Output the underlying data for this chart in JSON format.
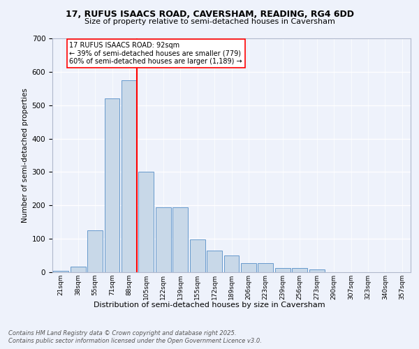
{
  "title1": "17, RUFUS ISAACS ROAD, CAVERSHAM, READING, RG4 6DD",
  "title2": "Size of property relative to semi-detached houses in Caversham",
  "xlabel": "Distribution of semi-detached houses by size in Caversham",
  "ylabel": "Number of semi-detached properties",
  "categories": [
    "21sqm",
    "38sqm",
    "55sqm",
    "71sqm",
    "88sqm",
    "105sqm",
    "122sqm",
    "139sqm",
    "155sqm",
    "172sqm",
    "189sqm",
    "206sqm",
    "223sqm",
    "239sqm",
    "256sqm",
    "273sqm",
    "290sqm",
    "307sqm",
    "323sqm",
    "340sqm",
    "357sqm"
  ],
  "values": [
    5,
    17,
    125,
    520,
    575,
    300,
    195,
    195,
    98,
    65,
    50,
    28,
    28,
    12,
    12,
    8,
    0,
    0,
    0,
    0,
    0
  ],
  "bar_color": "#c8d8e8",
  "bar_edge_color": "#6699cc",
  "annotation_text": "17 RUFUS ISAACS ROAD: 92sqm\n← 39% of semi-detached houses are smaller (779)\n60% of semi-detached houses are larger (1,189) →",
  "footer1": "Contains HM Land Registry data © Crown copyright and database right 2025.",
  "footer2": "Contains public sector information licensed under the Open Government Licence v3.0.",
  "ylim": [
    0,
    700
  ],
  "yticks": [
    0,
    100,
    200,
    300,
    400,
    500,
    600,
    700
  ],
  "bg_color": "#eef2fb",
  "plot_bg_color": "#eef2fb",
  "property_line_idx": 4
}
